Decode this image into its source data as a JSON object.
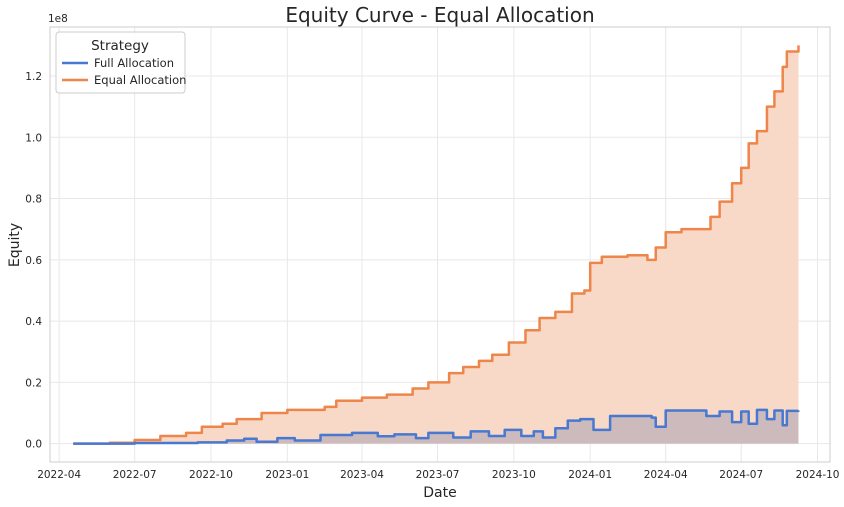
{
  "chart_data": {
    "type": "area",
    "title": "Equity Curve - Equal Allocation",
    "xlabel": "Date",
    "ylabel": "Equity",
    "y_scale_label": "1e8",
    "y_scale": 100000000,
    "xlim": [
      "2022-03-21",
      "2024-10-16"
    ],
    "ylim": [
      -0.06,
      1.36
    ],
    "x_ticks": [
      {
        "date": "2022-04-01",
        "label": "2022-04"
      },
      {
        "date": "2022-07-01",
        "label": "2022-07"
      },
      {
        "date": "2022-10-01",
        "label": "2022-10"
      },
      {
        "date": "2023-01-01",
        "label": "2023-01"
      },
      {
        "date": "2023-04-01",
        "label": "2023-04"
      },
      {
        "date": "2023-07-01",
        "label": "2023-07"
      },
      {
        "date": "2023-10-01",
        "label": "2023-10"
      },
      {
        "date": "2024-01-01",
        "label": "2024-01"
      },
      {
        "date": "2024-04-01",
        "label": "2024-04"
      },
      {
        "date": "2024-07-01",
        "label": "2024-07"
      },
      {
        "date": "2024-10-01",
        "label": "2024-10"
      }
    ],
    "y_ticks": [
      {
        "value": 0.0,
        "label": "0.0"
      },
      {
        "value": 0.2,
        "label": "0.2"
      },
      {
        "value": 0.4,
        "label": "0.4"
      },
      {
        "value": 0.6,
        "label": "0.6"
      },
      {
        "value": 0.8,
        "label": "0.8"
      },
      {
        "value": 1.0,
        "label": "1.0"
      },
      {
        "value": 1.2,
        "label": "1.2"
      }
    ],
    "grid": true,
    "legend": {
      "title": "Strategy",
      "placement": "top-left"
    },
    "series": [
      {
        "name": "Full Allocation",
        "color": "#4878d0",
        "fill": "#c9b8bd",
        "points": [
          [
            "2022-04-18",
            0.0
          ],
          [
            "2022-07-01",
            0.002
          ],
          [
            "2022-09-15",
            0.004
          ],
          [
            "2022-10-20",
            0.01
          ],
          [
            "2022-11-10",
            0.016
          ],
          [
            "2022-11-25",
            0.006
          ],
          [
            "2022-12-20",
            0.018
          ],
          [
            "2023-01-10",
            0.01
          ],
          [
            "2023-02-10",
            0.028
          ],
          [
            "2023-03-20",
            0.035
          ],
          [
            "2023-04-20",
            0.024
          ],
          [
            "2023-05-10",
            0.03
          ],
          [
            "2023-06-05",
            0.018
          ],
          [
            "2023-06-20",
            0.035
          ],
          [
            "2023-07-20",
            0.02
          ],
          [
            "2023-08-10",
            0.04
          ],
          [
            "2023-09-01",
            0.025
          ],
          [
            "2023-09-20",
            0.045
          ],
          [
            "2023-10-10",
            0.025
          ],
          [
            "2023-10-25",
            0.04
          ],
          [
            "2023-11-05",
            0.02
          ],
          [
            "2023-11-20",
            0.05
          ],
          [
            "2023-12-05",
            0.075
          ],
          [
            "2023-12-20",
            0.08
          ],
          [
            "2024-01-05",
            0.045
          ],
          [
            "2024-01-25",
            0.09
          ],
          [
            "2024-02-15",
            0.09
          ],
          [
            "2024-03-15",
            0.085
          ],
          [
            "2024-03-20",
            0.055
          ],
          [
            "2024-04-01",
            0.108
          ],
          [
            "2024-05-01",
            0.108
          ],
          [
            "2024-05-20",
            0.09
          ],
          [
            "2024-06-05",
            0.105
          ],
          [
            "2024-06-20",
            0.07
          ],
          [
            "2024-07-01",
            0.105
          ],
          [
            "2024-07-10",
            0.065
          ],
          [
            "2024-07-20",
            0.11
          ],
          [
            "2024-08-01",
            0.08
          ],
          [
            "2024-08-10",
            0.108
          ],
          [
            "2024-08-20",
            0.06
          ],
          [
            "2024-08-25",
            0.107
          ],
          [
            "2024-09-08",
            0.108
          ]
        ]
      },
      {
        "name": "Equal Allocation",
        "color": "#ee854a",
        "fill": "#f8d6c3",
        "points": [
          [
            "2022-04-18",
            0.0
          ],
          [
            "2022-06-01",
            0.003
          ],
          [
            "2022-07-01",
            0.012
          ],
          [
            "2022-08-01",
            0.025
          ],
          [
            "2022-09-01",
            0.035
          ],
          [
            "2022-09-20",
            0.055
          ],
          [
            "2022-10-15",
            0.065
          ],
          [
            "2022-11-01",
            0.08
          ],
          [
            "2022-12-01",
            0.1
          ],
          [
            "2023-01-01",
            0.11
          ],
          [
            "2023-02-15",
            0.12
          ],
          [
            "2023-03-01",
            0.14
          ],
          [
            "2023-04-01",
            0.15
          ],
          [
            "2023-05-01",
            0.16
          ],
          [
            "2023-06-01",
            0.18
          ],
          [
            "2023-06-20",
            0.2
          ],
          [
            "2023-07-15",
            0.23
          ],
          [
            "2023-08-01",
            0.25
          ],
          [
            "2023-08-20",
            0.27
          ],
          [
            "2023-09-05",
            0.29
          ],
          [
            "2023-09-25",
            0.33
          ],
          [
            "2023-10-15",
            0.37
          ],
          [
            "2023-11-01",
            0.41
          ],
          [
            "2023-11-20",
            0.43
          ],
          [
            "2023-12-10",
            0.49
          ],
          [
            "2023-12-25",
            0.5
          ],
          [
            "2024-01-01",
            0.59
          ],
          [
            "2024-01-15",
            0.61
          ],
          [
            "2024-02-15",
            0.615
          ],
          [
            "2024-03-10",
            0.6
          ],
          [
            "2024-03-20",
            0.64
          ],
          [
            "2024-04-01",
            0.69
          ],
          [
            "2024-04-20",
            0.7
          ],
          [
            "2024-05-10",
            0.7
          ],
          [
            "2024-05-25",
            0.74
          ],
          [
            "2024-06-05",
            0.79
          ],
          [
            "2024-06-20",
            0.85
          ],
          [
            "2024-07-01",
            0.9
          ],
          [
            "2024-07-10",
            0.98
          ],
          [
            "2024-07-20",
            1.02
          ],
          [
            "2024-08-01",
            1.1
          ],
          [
            "2024-08-10",
            1.15
          ],
          [
            "2024-08-20",
            1.23
          ],
          [
            "2024-08-25",
            1.28
          ],
          [
            "2024-09-08",
            1.3
          ]
        ]
      }
    ]
  }
}
